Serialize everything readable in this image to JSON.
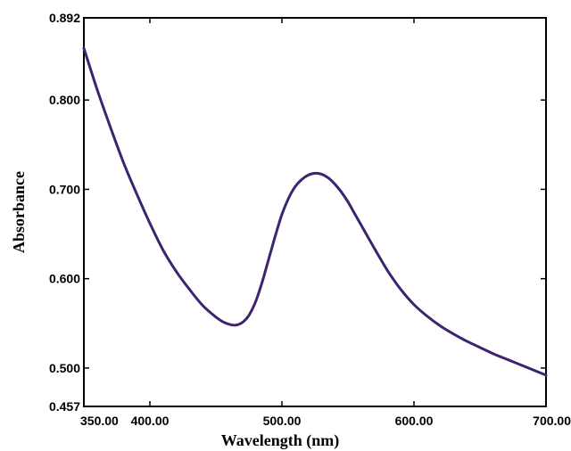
{
  "chart_data": {
    "type": "line",
    "title": "",
    "xlabel": "Wavelength (nm)",
    "ylabel": "Absorbance",
    "xlim": [
      350.0,
      700.0
    ],
    "ylim": [
      0.457,
      0.892
    ],
    "x_ticks": [
      350.0,
      400.0,
      500.0,
      600.0,
      700.0
    ],
    "x_tick_labels": [
      "350.00",
      "400.00",
      "500.00",
      "600.00",
      "700.00"
    ],
    "y_ticks": [
      0.457,
      0.5,
      0.6,
      0.7,
      0.8,
      0.892
    ],
    "y_tick_labels": [
      "0.457",
      "0.500",
      "0.600",
      "0.700",
      "0.800",
      "0.892"
    ],
    "grid": false,
    "legend": "none",
    "line_color": "#3d2470",
    "series": [
      {
        "x": [
          350,
          360,
          370,
          380,
          390,
          400,
          410,
          420,
          430,
          440,
          450,
          455,
          460,
          465,
          470,
          475,
          480,
          485,
          490,
          495,
          500,
          505,
          510,
          515,
          520,
          525,
          530,
          535,
          540,
          545,
          550,
          555,
          560,
          570,
          580,
          590,
          600,
          610,
          620,
          630,
          640,
          650,
          660,
          670,
          680,
          690,
          700
        ],
        "y": [
          0.858,
          0.812,
          0.77,
          0.73,
          0.695,
          0.662,
          0.632,
          0.608,
          0.588,
          0.57,
          0.557,
          0.552,
          0.549,
          0.548,
          0.551,
          0.559,
          0.574,
          0.596,
          0.622,
          0.648,
          0.672,
          0.69,
          0.703,
          0.711,
          0.716,
          0.718,
          0.717,
          0.713,
          0.706,
          0.697,
          0.686,
          0.673,
          0.66,
          0.634,
          0.609,
          0.588,
          0.571,
          0.558,
          0.547,
          0.538,
          0.53,
          0.523,
          0.516,
          0.51,
          0.504,
          0.498,
          0.492
        ]
      }
    ]
  }
}
